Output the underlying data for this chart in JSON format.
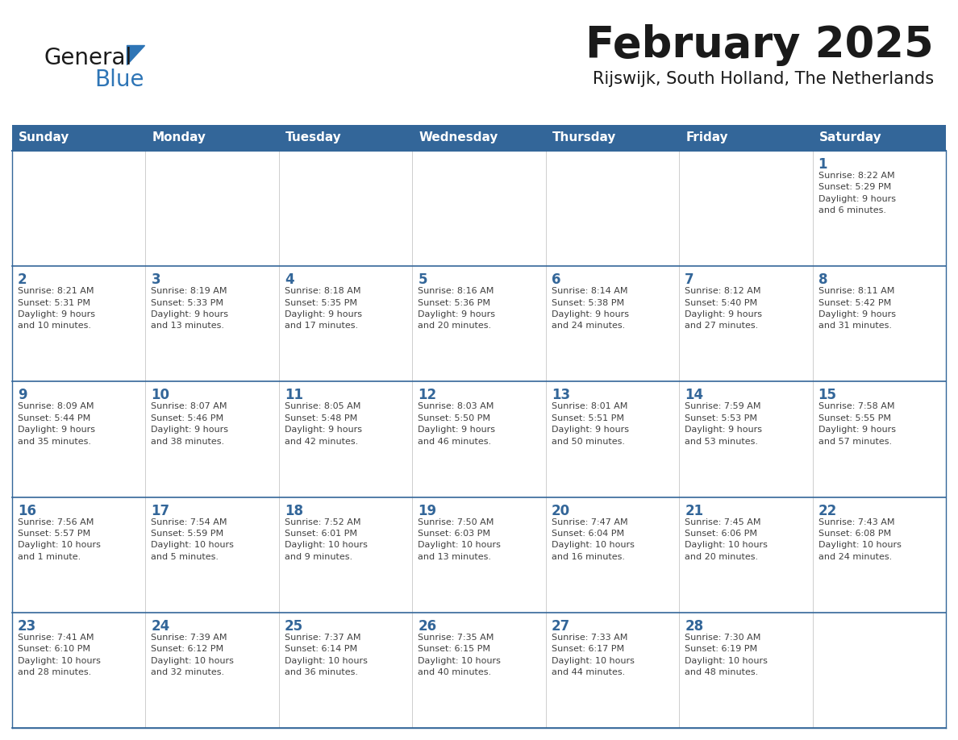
{
  "title": "February 2025",
  "subtitle": "Rijswijk, South Holland, The Netherlands",
  "days_of_week": [
    "Sunday",
    "Monday",
    "Tuesday",
    "Wednesday",
    "Thursday",
    "Friday",
    "Saturday"
  ],
  "header_bg": "#336699",
  "header_text": "#FFFFFF",
  "cell_bg": "#FFFFFF",
  "row_separator_color": "#336699",
  "col_separator_color": "#CCCCCC",
  "day_number_color": "#336699",
  "info_text_color": "#404040",
  "title_color": "#1a1a1a",
  "logo_general_color": "#1a1a1a",
  "logo_blue_color": "#2E75B6",
  "logo_triangle_color": "#2E75B6",
  "calendar_data": [
    [
      {
        "day": null,
        "info": ""
      },
      {
        "day": null,
        "info": ""
      },
      {
        "day": null,
        "info": ""
      },
      {
        "day": null,
        "info": ""
      },
      {
        "day": null,
        "info": ""
      },
      {
        "day": null,
        "info": ""
      },
      {
        "day": 1,
        "info": "Sunrise: 8:22 AM\nSunset: 5:29 PM\nDaylight: 9 hours\nand 6 minutes."
      }
    ],
    [
      {
        "day": 2,
        "info": "Sunrise: 8:21 AM\nSunset: 5:31 PM\nDaylight: 9 hours\nand 10 minutes."
      },
      {
        "day": 3,
        "info": "Sunrise: 8:19 AM\nSunset: 5:33 PM\nDaylight: 9 hours\nand 13 minutes."
      },
      {
        "day": 4,
        "info": "Sunrise: 8:18 AM\nSunset: 5:35 PM\nDaylight: 9 hours\nand 17 minutes."
      },
      {
        "day": 5,
        "info": "Sunrise: 8:16 AM\nSunset: 5:36 PM\nDaylight: 9 hours\nand 20 minutes."
      },
      {
        "day": 6,
        "info": "Sunrise: 8:14 AM\nSunset: 5:38 PM\nDaylight: 9 hours\nand 24 minutes."
      },
      {
        "day": 7,
        "info": "Sunrise: 8:12 AM\nSunset: 5:40 PM\nDaylight: 9 hours\nand 27 minutes."
      },
      {
        "day": 8,
        "info": "Sunrise: 8:11 AM\nSunset: 5:42 PM\nDaylight: 9 hours\nand 31 minutes."
      }
    ],
    [
      {
        "day": 9,
        "info": "Sunrise: 8:09 AM\nSunset: 5:44 PM\nDaylight: 9 hours\nand 35 minutes."
      },
      {
        "day": 10,
        "info": "Sunrise: 8:07 AM\nSunset: 5:46 PM\nDaylight: 9 hours\nand 38 minutes."
      },
      {
        "day": 11,
        "info": "Sunrise: 8:05 AM\nSunset: 5:48 PM\nDaylight: 9 hours\nand 42 minutes."
      },
      {
        "day": 12,
        "info": "Sunrise: 8:03 AM\nSunset: 5:50 PM\nDaylight: 9 hours\nand 46 minutes."
      },
      {
        "day": 13,
        "info": "Sunrise: 8:01 AM\nSunset: 5:51 PM\nDaylight: 9 hours\nand 50 minutes."
      },
      {
        "day": 14,
        "info": "Sunrise: 7:59 AM\nSunset: 5:53 PM\nDaylight: 9 hours\nand 53 minutes."
      },
      {
        "day": 15,
        "info": "Sunrise: 7:58 AM\nSunset: 5:55 PM\nDaylight: 9 hours\nand 57 minutes."
      }
    ],
    [
      {
        "day": 16,
        "info": "Sunrise: 7:56 AM\nSunset: 5:57 PM\nDaylight: 10 hours\nand 1 minute."
      },
      {
        "day": 17,
        "info": "Sunrise: 7:54 AM\nSunset: 5:59 PM\nDaylight: 10 hours\nand 5 minutes."
      },
      {
        "day": 18,
        "info": "Sunrise: 7:52 AM\nSunset: 6:01 PM\nDaylight: 10 hours\nand 9 minutes."
      },
      {
        "day": 19,
        "info": "Sunrise: 7:50 AM\nSunset: 6:03 PM\nDaylight: 10 hours\nand 13 minutes."
      },
      {
        "day": 20,
        "info": "Sunrise: 7:47 AM\nSunset: 6:04 PM\nDaylight: 10 hours\nand 16 minutes."
      },
      {
        "day": 21,
        "info": "Sunrise: 7:45 AM\nSunset: 6:06 PM\nDaylight: 10 hours\nand 20 minutes."
      },
      {
        "day": 22,
        "info": "Sunrise: 7:43 AM\nSunset: 6:08 PM\nDaylight: 10 hours\nand 24 minutes."
      }
    ],
    [
      {
        "day": 23,
        "info": "Sunrise: 7:41 AM\nSunset: 6:10 PM\nDaylight: 10 hours\nand 28 minutes."
      },
      {
        "day": 24,
        "info": "Sunrise: 7:39 AM\nSunset: 6:12 PM\nDaylight: 10 hours\nand 32 minutes."
      },
      {
        "day": 25,
        "info": "Sunrise: 7:37 AM\nSunset: 6:14 PM\nDaylight: 10 hours\nand 36 minutes."
      },
      {
        "day": 26,
        "info": "Sunrise: 7:35 AM\nSunset: 6:15 PM\nDaylight: 10 hours\nand 40 minutes."
      },
      {
        "day": 27,
        "info": "Sunrise: 7:33 AM\nSunset: 6:17 PM\nDaylight: 10 hours\nand 44 minutes."
      },
      {
        "day": 28,
        "info": "Sunrise: 7:30 AM\nSunset: 6:19 PM\nDaylight: 10 hours\nand 48 minutes."
      },
      {
        "day": null,
        "info": ""
      }
    ]
  ]
}
